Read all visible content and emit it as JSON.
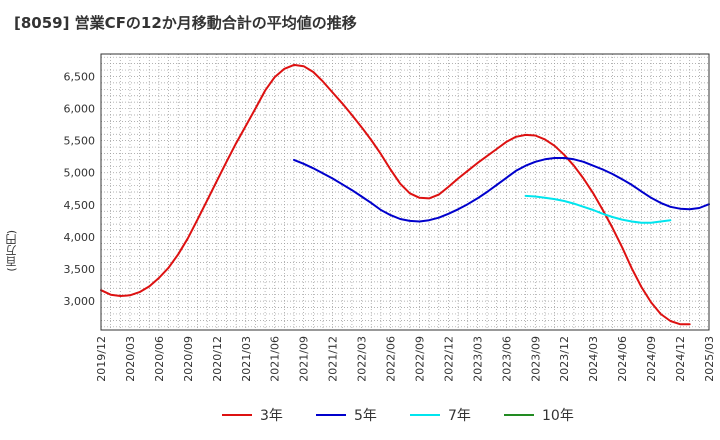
{
  "chart_data": {
    "type": "line",
    "title": "[8059]  営業CFの12か月移動合計の平均値の推移",
    "ylabel": "(百万円)",
    "xlabel": "",
    "ylim": [
      2550,
      6850
    ],
    "yticks": [
      3000,
      3500,
      4000,
      4500,
      5000,
      5500,
      6000,
      6500
    ],
    "ytick_labels": [
      "3,000",
      "3,500",
      "4,000",
      "4,500",
      "5,000",
      "5,500",
      "6,000",
      "6,500"
    ],
    "x_range": [
      "2019-12",
      "2025-03"
    ],
    "xtick_labels": [
      "2019/12",
      "2020/03",
      "2020/06",
      "2020/09",
      "2020/12",
      "2021/03",
      "2021/06",
      "2021/09",
      "2021/12",
      "2022/03",
      "2022/06",
      "2022/09",
      "2022/12",
      "2023/03",
      "2023/06",
      "2023/09",
      "2023/12",
      "2024/03",
      "2024/06",
      "2024/09",
      "2024/12",
      "2025/03"
    ],
    "grid": true,
    "legend_position": "bottom",
    "series": [
      {
        "name": "3年",
        "color": "#dd1111",
        "start": "2019-12",
        "values": [
          3170,
          3100,
          3080,
          3090,
          3140,
          3230,
          3360,
          3520,
          3730,
          3980,
          4270,
          4570,
          4870,
          5170,
          5460,
          5730,
          6000,
          6280,
          6490,
          6620,
          6680,
          6660,
          6570,
          6420,
          6250,
          6080,
          5900,
          5710,
          5510,
          5290,
          5050,
          4830,
          4680,
          4610,
          4600,
          4660,
          4780,
          4910,
          5030,
          5150,
          5260,
          5370,
          5480,
          5560,
          5590,
          5580,
          5520,
          5420,
          5280,
          5110,
          4910,
          4680,
          4420,
          4140,
          3840,
          3510,
          3220,
          2980,
          2800,
          2690,
          2640,
          2640
        ]
      },
      {
        "name": "5年",
        "color": "#0000cc",
        "start": "2021-08",
        "values": [
          5200,
          5140,
          5070,
          4990,
          4910,
          4820,
          4730,
          4630,
          4530,
          4420,
          4340,
          4280,
          4250,
          4240,
          4260,
          4300,
          4360,
          4430,
          4510,
          4600,
          4700,
          4810,
          4920,
          5030,
          5110,
          5170,
          5210,
          5230,
          5230,
          5210,
          5170,
          5110,
          5050,
          4980,
          4900,
          4810,
          4710,
          4610,
          4530,
          4470,
          4440,
          4430,
          4450,
          4510
        ]
      },
      {
        "name": "7年",
        "color": "#00e5ee",
        "start": "2023-08",
        "values": [
          4640,
          4630,
          4610,
          4590,
          4560,
          4520,
          4470,
          4420,
          4360,
          4310,
          4270,
          4240,
          4220,
          4220,
          4240,
          4260
        ]
      },
      {
        "name": "10年",
        "color": "#228b22",
        "start": "2023-08",
        "values": []
      }
    ]
  }
}
